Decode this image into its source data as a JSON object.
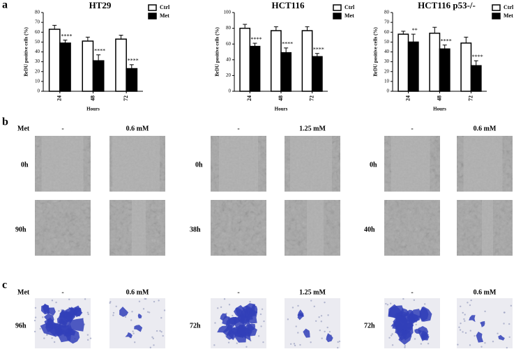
{
  "panel_labels": [
    "a",
    "b",
    "c"
  ],
  "chart_data": [
    {
      "type": "bar",
      "title": "HT29",
      "y_label": "BrDU positive cells (%)",
      "x_label": "Hours",
      "categories": [
        "24",
        "48",
        "72"
      ],
      "series": [
        {
          "name": "Ctrl",
          "color": "#ffffff",
          "values": [
            63,
            51,
            53
          ],
          "errors": [
            4,
            4,
            4
          ]
        },
        {
          "name": "Met",
          "color": "#000000",
          "values": [
            49,
            31,
            23
          ],
          "errors": [
            3,
            6,
            4
          ],
          "annotations": [
            "****",
            "****",
            "****"
          ]
        }
      ],
      "ylim": [
        0,
        80
      ],
      "yticks": [
        0,
        10,
        20,
        30,
        40,
        50,
        60,
        70,
        80
      ]
    },
    {
      "type": "bar",
      "title": "HCT116",
      "y_label": "BrDU positive cells (%)",
      "x_label": "Hours",
      "categories": [
        "24",
        "48",
        "72"
      ],
      "series": [
        {
          "name": "Ctrl",
          "color": "#ffffff",
          "values": [
            80,
            77,
            77
          ],
          "errors": [
            5,
            5,
            5
          ]
        },
        {
          "name": "Met",
          "color": "#000000",
          "values": [
            57,
            49,
            44
          ],
          "errors": [
            4,
            6,
            4
          ],
          "annotations": [
            "****",
            "****",
            "****"
          ]
        }
      ],
      "ylim": [
        0,
        100
      ],
      "yticks": [
        0,
        20,
        40,
        60,
        80,
        100
      ]
    },
    {
      "type": "bar",
      "title": "HCT116 p53-/-",
      "y_label": "BrDU positive cells (%)",
      "x_label": "Hours",
      "categories": [
        "24",
        "48",
        "72"
      ],
      "series": [
        {
          "name": "Ctrl",
          "color": "#ffffff",
          "values": [
            58,
            59,
            49
          ],
          "errors": [
            3,
            6,
            6
          ]
        },
        {
          "name": "Met",
          "color": "#000000",
          "values": [
            50,
            43,
            26
          ],
          "errors": [
            8,
            4,
            5
          ],
          "annotations": [
            "**",
            "****",
            "****"
          ]
        }
      ],
      "ylim": [
        0,
        80
      ],
      "yticks": [
        0,
        10,
        20,
        30,
        40,
        50,
        60,
        70,
        80
      ]
    }
  ],
  "wound_healing": {
    "row_label": "Met",
    "columns": [
      {
        "conditions": [
          "-",
          "0.6 mM"
        ],
        "times": [
          "0h",
          "90h"
        ]
      },
      {
        "conditions": [
          "-",
          "1.25 mM"
        ],
        "times": [
          "0h",
          "38h"
        ]
      },
      {
        "conditions": [
          "-",
          "0.6 mM"
        ],
        "times": [
          "0h",
          "40h"
        ]
      }
    ]
  },
  "invasion": {
    "row_label": "Met",
    "columns": [
      {
        "conditions": [
          "-",
          "0.6 mM"
        ],
        "times": [
          "96h"
        ]
      },
      {
        "conditions": [
          "-",
          "1.25 mM"
        ],
        "times": [
          "72h"
        ]
      },
      {
        "conditions": [
          "-",
          "0.6 mM"
        ],
        "times": [
          "72h"
        ]
      }
    ]
  }
}
